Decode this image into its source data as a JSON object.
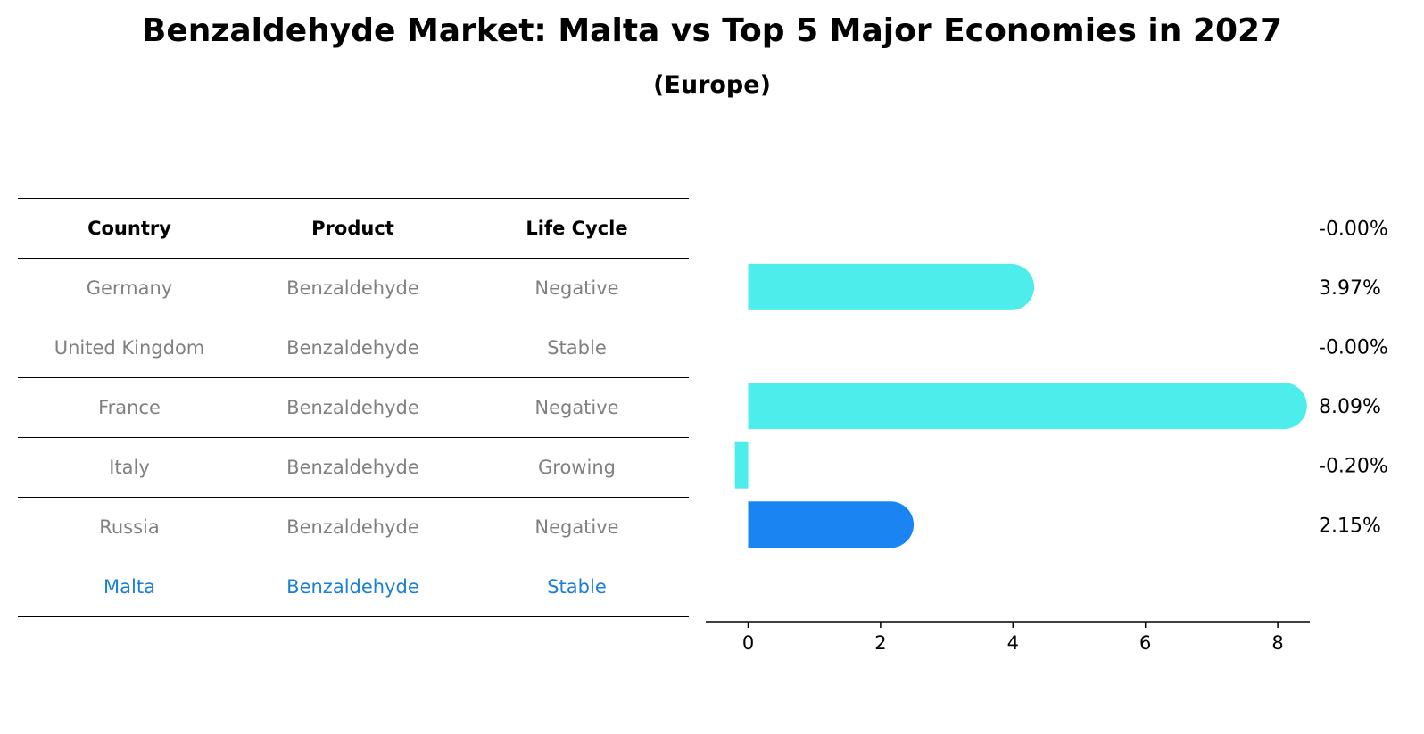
{
  "title": "Benzaldehyde Market: Malta vs Top 5 Major Economies in 2027",
  "subtitle": "(Europe)",
  "table": {
    "headers": [
      "Country",
      "Product",
      "Life Cycle"
    ],
    "rows": [
      [
        "Germany",
        "Benzaldehyde",
        "Negative"
      ],
      [
        "United Kingdom",
        "Benzaldehyde",
        "Stable"
      ],
      [
        "France",
        "Benzaldehyde",
        "Negative"
      ],
      [
        "Italy",
        "Benzaldehyde",
        "Growing"
      ],
      [
        "Russia",
        "Benzaldehyde",
        "Negative"
      ],
      [
        "Malta",
        "Benzaldehyde",
        "Stable"
      ]
    ],
    "highlight_row": 5
  },
  "colors": {
    "bar": "#4dedec",
    "highlight_bar": "#1a85f2",
    "highlight_text": "#1a7fd6",
    "row_text": "#808080"
  },
  "chart_data": {
    "type": "bar",
    "orientation": "horizontal",
    "categories": [
      "Germany",
      "United Kingdom",
      "France",
      "Italy",
      "Russia",
      "Malta"
    ],
    "values": [
      -0.0,
      3.97,
      -0.0,
      8.09,
      -0.2,
      2.15
    ],
    "value_labels": [
      "-0.00%",
      "3.97%",
      "-0.00%",
      "8.09%",
      "-0.20%",
      "2.15%"
    ],
    "highlight": "Malta",
    "xlim": [
      -0.6,
      8.5
    ],
    "xticks": [
      0,
      2,
      4,
      6,
      8
    ],
    "grid": false,
    "title": "",
    "xlabel": "",
    "ylabel": ""
  }
}
